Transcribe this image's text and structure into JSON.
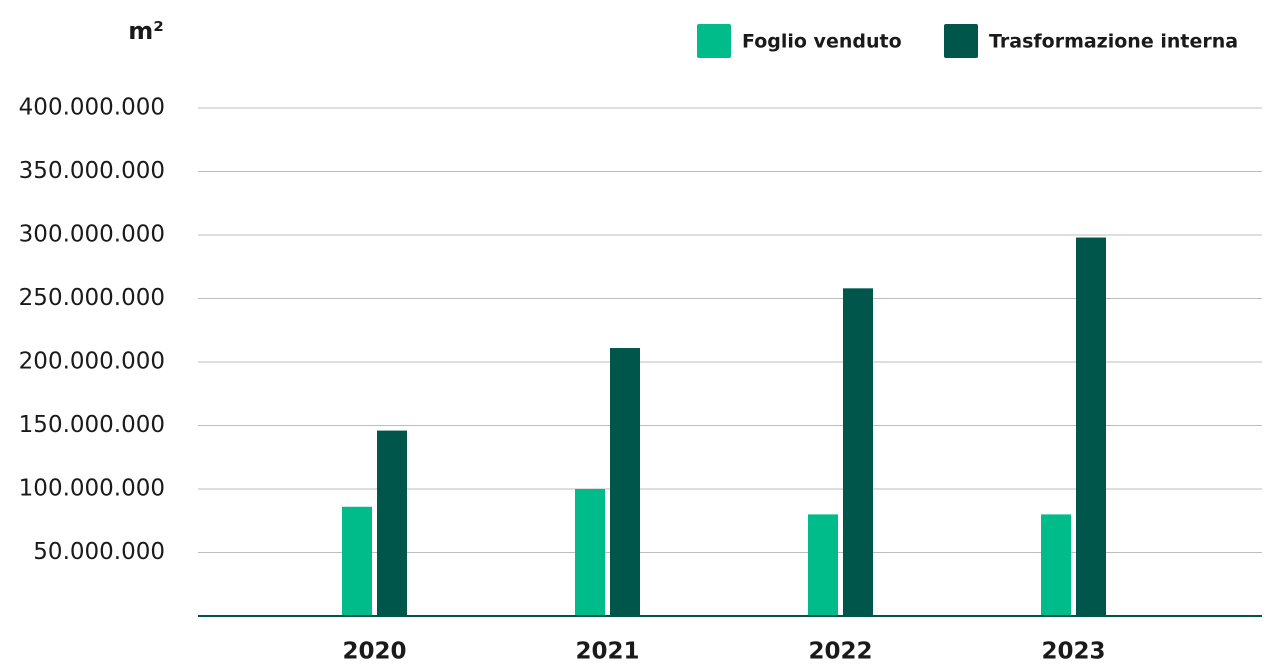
{
  "chart_data": {
    "type": "bar",
    "y_label": "m²",
    "categories": [
      "2020",
      "2021",
      "2022",
      "2023"
    ],
    "series": [
      {
        "name": "Foglio venduto",
        "color": "#00bb8a",
        "values": [
          86000000,
          100000000,
          80000000,
          80000000
        ]
      },
      {
        "name": "Trasformazione interna",
        "color": "#00564a",
        "values": [
          146000000,
          211000000,
          258000000,
          298000000
        ]
      }
    ],
    "ylim": [
      0,
      400000000
    ],
    "yticks": [
      {
        "value": 50000000,
        "label": "50.000.000"
      },
      {
        "value": 100000000,
        "label": "100.000.000"
      },
      {
        "value": 150000000,
        "label": "150.000.000"
      },
      {
        "value": 200000000,
        "label": "200.000.000"
      },
      {
        "value": 250000000,
        "label": "250.000.000"
      },
      {
        "value": 300000000,
        "label": "300.000.000"
      },
      {
        "value": 350000000,
        "label": "350.000.000"
      },
      {
        "value": 400000000,
        "label": "400.000.000"
      }
    ],
    "grid": true,
    "legend": "top-right"
  }
}
